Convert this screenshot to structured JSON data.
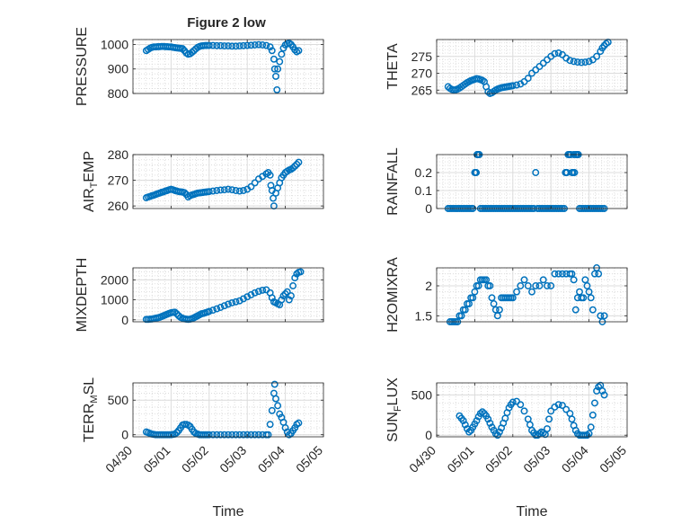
{
  "figure": {
    "title": "Figure 2 low",
    "x_tick_labels": [
      "04/30",
      "05/01",
      "05/02",
      "05/03",
      "05/04",
      "05/05"
    ],
    "x_label": "Time",
    "marker_color": "#0072BD"
  },
  "chart_data": [
    {
      "type": "scatter",
      "name": "PRESSURE",
      "ylabel": "PRESSURE",
      "xlim": [
        0,
        5
      ],
      "ylim": [
        800,
        1020
      ],
      "yticks": [
        800,
        900,
        1000
      ],
      "ytick_labels": [
        "800",
        "900",
        "1000"
      ],
      "title": "Figure 2 low",
      "x": [
        0.35,
        0.4,
        0.45,
        0.5,
        0.55,
        0.6,
        0.65,
        0.7,
        0.75,
        0.8,
        0.85,
        0.9,
        0.95,
        1.0,
        1.05,
        1.1,
        1.15,
        1.2,
        1.25,
        1.3,
        1.35,
        1.4,
        1.45,
        1.5,
        1.55,
        1.6,
        1.65,
        1.7,
        1.75,
        1.8,
        1.85,
        1.9,
        1.95,
        2.0,
        2.1,
        2.2,
        2.3,
        2.4,
        2.5,
        2.6,
        2.7,
        2.8,
        2.9,
        3.0,
        3.1,
        3.2,
        3.3,
        3.4,
        3.5,
        3.6,
        3.65,
        3.7,
        3.72,
        3.75,
        3.78,
        3.8,
        3.85,
        3.9,
        3.95,
        4.0,
        4.05,
        4.1,
        4.15,
        4.2,
        4.25,
        4.3,
        4.35
      ],
      "y": [
        975,
        980,
        985,
        988,
        990,
        990,
        991,
        991,
        992,
        992,
        991,
        991,
        990,
        990,
        988,
        987,
        986,
        985,
        984,
        983,
        975,
        965,
        960,
        962,
        968,
        975,
        982,
        988,
        992,
        994,
        995,
        996,
        996,
        996,
        996,
        995,
        995,
        994,
        994,
        993,
        993,
        994,
        995,
        996,
        997,
        998,
        999,
        998,
        996,
        990,
        975,
        940,
        900,
        870,
        815,
        900,
        930,
        960,
        985,
        998,
        1003,
        1005,
        1000,
        990,
        978,
        970,
        975
      ]
    },
    {
      "type": "scatter",
      "name": "THETA",
      "ylabel": "THETA",
      "xlim": [
        0,
        5
      ],
      "ylim": [
        264,
        280
      ],
      "yticks": [
        265,
        270,
        275
      ],
      "ytick_labels": [
        "265",
        "270",
        "275"
      ],
      "x": [
        0.3,
        0.35,
        0.4,
        0.45,
        0.5,
        0.55,
        0.6,
        0.65,
        0.7,
        0.75,
        0.8,
        0.85,
        0.9,
        0.95,
        1.0,
        1.05,
        1.1,
        1.15,
        1.2,
        1.25,
        1.3,
        1.35,
        1.4,
        1.45,
        1.5,
        1.55,
        1.6,
        1.65,
        1.7,
        1.75,
        1.8,
        1.85,
        1.9,
        1.95,
        2.0,
        2.1,
        2.2,
        2.3,
        2.4,
        2.5,
        2.6,
        2.7,
        2.8,
        2.9,
        3.0,
        3.1,
        3.2,
        3.3,
        3.4,
        3.5,
        3.6,
        3.7,
        3.8,
        3.9,
        4.0,
        4.1,
        4.2,
        4.3,
        4.35,
        4.4,
        4.45,
        4.5
      ],
      "y": [
        266,
        265.5,
        265.2,
        265,
        265.1,
        265.3,
        265.6,
        266,
        266.4,
        266.8,
        267.2,
        267.5,
        267.8,
        268,
        268.2,
        268.4,
        268.3,
        268.1,
        267.9,
        267.5,
        266,
        264.5,
        264,
        264.2,
        264.6,
        265,
        265.3,
        265.5,
        265.7,
        265.8,
        265.9,
        266,
        266.1,
        266.2,
        266.3,
        266.5,
        266.8,
        267.5,
        268.5,
        270,
        271,
        272,
        273,
        274,
        275,
        275.8,
        276,
        275.5,
        274.5,
        273.8,
        273.5,
        273.3,
        273.2,
        273.3,
        273.5,
        274,
        275,
        276.5,
        277.5,
        278.2,
        278.8,
        279.2
      ]
    },
    {
      "type": "scatter",
      "name": "AIR_TEMP",
      "ylabel": "AIR",
      "ylabel_sub": "T",
      "ylabel_tail": "EMP",
      "xlim": [
        0,
        5
      ],
      "ylim": [
        259,
        280
      ],
      "yticks": [
        260,
        270,
        280
      ],
      "ytick_labels": [
        "260",
        "270",
        "280"
      ],
      "x": [
        0.35,
        0.4,
        0.45,
        0.5,
        0.55,
        0.6,
        0.65,
        0.7,
        0.75,
        0.8,
        0.85,
        0.9,
        0.95,
        1.0,
        1.05,
        1.1,
        1.15,
        1.2,
        1.25,
        1.3,
        1.35,
        1.4,
        1.45,
        1.5,
        1.55,
        1.6,
        1.65,
        1.7,
        1.75,
        1.8,
        1.85,
        1.9,
        1.95,
        2.0,
        2.1,
        2.2,
        2.3,
        2.4,
        2.5,
        2.6,
        2.7,
        2.8,
        2.9,
        3.0,
        3.1,
        3.2,
        3.3,
        3.4,
        3.5,
        3.55,
        3.6,
        3.62,
        3.65,
        3.68,
        3.7,
        3.75,
        3.8,
        3.85,
        3.9,
        3.95,
        4.0,
        4.05,
        4.1,
        4.15,
        4.2,
        4.25,
        4.3,
        4.35
      ],
      "y": [
        263.2,
        263.5,
        263.7,
        264,
        264.2,
        264.5,
        264.8,
        265,
        265.3,
        265.5,
        265.8,
        266,
        266.3,
        266.5,
        266.3,
        266,
        265.8,
        265.6,
        265.5,
        265.4,
        265.2,
        264.5,
        263.5,
        264,
        264.3,
        264.5,
        264.8,
        265,
        265.1,
        265.2,
        265.3,
        265.4,
        265.5,
        265.6,
        265.8,
        266,
        266.2,
        266.3,
        266.5,
        266.3,
        266,
        265.8,
        266,
        266.5,
        267.5,
        269,
        270.5,
        271.5,
        272.5,
        273,
        272,
        268,
        266,
        263,
        260,
        265,
        267,
        269,
        271,
        272,
        273,
        273.5,
        274,
        274.3,
        274.8,
        275.5,
        276.2,
        277
      ]
    },
    {
      "type": "scatter",
      "name": "RAINFALL",
      "ylabel": "RAINFALL",
      "xlim": [
        0,
        5
      ],
      "ylim": [
        0,
        0.3
      ],
      "yticks": [
        0,
        0.1,
        0.2
      ],
      "ytick_labels": [
        "0",
        "0.1",
        "0.2"
      ],
      "x": [
        0.3,
        0.35,
        0.4,
        0.45,
        0.5,
        0.55,
        0.6,
        0.65,
        0.7,
        0.75,
        0.8,
        0.85,
        0.9,
        0.95,
        1.0,
        1.02,
        1.04,
        1.06,
        1.08,
        1.1,
        1.12,
        1.15,
        1.2,
        1.25,
        1.3,
        1.35,
        1.4,
        1.45,
        1.5,
        1.55,
        1.6,
        1.65,
        1.7,
        1.75,
        1.8,
        1.85,
        1.9,
        1.95,
        2.0,
        2.05,
        2.1,
        2.15,
        2.2,
        2.25,
        2.3,
        2.35,
        2.4,
        2.45,
        2.5,
        2.55,
        2.6,
        2.65,
        2.7,
        2.75,
        2.8,
        2.85,
        2.9,
        2.95,
        3.0,
        3.05,
        3.1,
        3.15,
        3.2,
        3.25,
        3.3,
        3.35,
        3.38,
        3.4,
        3.42,
        3.45,
        3.48,
        3.5,
        3.52,
        3.55,
        3.58,
        3.6,
        3.62,
        3.65,
        3.68,
        3.7,
        3.72,
        3.75,
        3.8,
        3.85,
        3.9,
        3.95,
        4.0,
        4.05,
        4.1,
        4.15,
        4.2,
        4.25,
        4.3,
        4.35,
        4.4
      ],
      "y": [
        0,
        0,
        0,
        0,
        0,
        0,
        0,
        0,
        0,
        0,
        0,
        0,
        0,
        0,
        0.2,
        0.2,
        0.2,
        0.3,
        0.3,
        0.3,
        0.3,
        0,
        0,
        0,
        0,
        0,
        0,
        0,
        0,
        0,
        0,
        0,
        0,
        0,
        0,
        0,
        0,
        0,
        0,
        0,
        0,
        0,
        0,
        0,
        0,
        0,
        0,
        0,
        0,
        0,
        0.2,
        0,
        0,
        0,
        0,
        0,
        0,
        0,
        0,
        0,
        0,
        0,
        0,
        0,
        0,
        0,
        0.2,
        0.2,
        0.2,
        0.3,
        0.3,
        0.3,
        0.3,
        0.2,
        0.2,
        0.3,
        0.2,
        0.3,
        0.3,
        0.3,
        0.3,
        0,
        0,
        0,
        0,
        0,
        0,
        0,
        0,
        0,
        0,
        0,
        0,
        0,
        0
      ]
    },
    {
      "type": "scatter",
      "name": "MIXDEPTH",
      "ylabel": "MIXDEPTH",
      "xlim": [
        0,
        5
      ],
      "ylim": [
        -100,
        2600
      ],
      "yticks": [
        0,
        1000,
        2000
      ],
      "ytick_labels": [
        "0",
        "1000",
        "2000"
      ],
      "x": [
        0.35,
        0.4,
        0.45,
        0.5,
        0.55,
        0.6,
        0.65,
        0.7,
        0.75,
        0.8,
        0.85,
        0.9,
        0.95,
        1.0,
        1.05,
        1.1,
        1.15,
        1.2,
        1.25,
        1.3,
        1.35,
        1.4,
        1.45,
        1.5,
        1.55,
        1.6,
        1.65,
        1.7,
        1.75,
        1.8,
        1.85,
        1.9,
        1.95,
        2.0,
        2.1,
        2.2,
        2.3,
        2.4,
        2.5,
        2.6,
        2.7,
        2.8,
        2.9,
        3.0,
        3.1,
        3.2,
        3.3,
        3.4,
        3.5,
        3.6,
        3.65,
        3.7,
        3.75,
        3.8,
        3.85,
        3.9,
        3.95,
        4.0,
        4.05,
        4.1,
        4.15,
        4.2,
        4.25,
        4.3,
        4.35,
        4.4
      ],
      "y": [
        20,
        20,
        30,
        40,
        60,
        80,
        100,
        120,
        160,
        200,
        240,
        280,
        320,
        350,
        370,
        380,
        300,
        200,
        120,
        80,
        50,
        30,
        20,
        30,
        60,
        100,
        150,
        200,
        250,
        300,
        320,
        350,
        380,
        420,
        480,
        550,
        620,
        700,
        780,
        850,
        900,
        950,
        1050,
        1150,
        1250,
        1350,
        1420,
        1480,
        1500,
        1350,
        1100,
        900,
        850,
        800,
        750,
        1000,
        1200,
        1300,
        1400,
        1000,
        1200,
        1700,
        2100,
        2300,
        2380,
        2400
      ]
    },
    {
      "type": "scatter",
      "name": "H2OMIXRA",
      "ylabel": "H2OMIXRA",
      "xlim": [
        0,
        5
      ],
      "ylim": [
        1.4,
        2.3
      ],
      "yticks": [
        1.5,
        2.0
      ],
      "ytick_labels": [
        "1.5",
        "2"
      ],
      "x": [
        0.35,
        0.4,
        0.45,
        0.5,
        0.55,
        0.6,
        0.65,
        0.7,
        0.75,
        0.8,
        0.85,
        0.9,
        0.95,
        1.0,
        1.05,
        1.1,
        1.15,
        1.2,
        1.25,
        1.3,
        1.35,
        1.4,
        1.45,
        1.5,
        1.55,
        1.6,
        1.65,
        1.7,
        1.75,
        1.8,
        1.85,
        1.9,
        1.95,
        2.0,
        2.1,
        2.2,
        2.3,
        2.4,
        2.5,
        2.6,
        2.7,
        2.8,
        2.9,
        3.0,
        3.1,
        3.2,
        3.3,
        3.4,
        3.5,
        3.55,
        3.6,
        3.65,
        3.7,
        3.75,
        3.8,
        3.85,
        3.9,
        3.95,
        4.0,
        4.05,
        4.1,
        4.15,
        4.2,
        4.25,
        4.3,
        4.35,
        4.4
      ],
      "y": [
        1.4,
        1.4,
        1.4,
        1.4,
        1.4,
        1.5,
        1.5,
        1.6,
        1.6,
        1.7,
        1.7,
        1.8,
        1.8,
        1.9,
        2.0,
        2.0,
        2.1,
        2.1,
        2.1,
        2.1,
        2.0,
        2.0,
        1.8,
        1.7,
        1.6,
        1.5,
        1.6,
        1.8,
        1.8,
        1.8,
        1.8,
        1.8,
        1.8,
        1.8,
        1.9,
        2.0,
        2.1,
        2.0,
        1.9,
        2.0,
        2.0,
        2.1,
        2.0,
        2.0,
        2.2,
        2.2,
        2.2,
        2.2,
        2.2,
        2.2,
        2.1,
        1.6,
        1.8,
        1.9,
        1.8,
        1.8,
        2.1,
        2.0,
        1.9,
        1.8,
        1.6,
        2.2,
        2.3,
        2.2,
        1.5,
        1.4,
        1.5
      ]
    },
    {
      "type": "scatter",
      "name": "TERR_MSL",
      "ylabel": "TERR",
      "ylabel_sub": "M",
      "ylabel_tail": "SL",
      "xlim": [
        0,
        5
      ],
      "ylim": [
        -30,
        750
      ],
      "yticks": [
        0,
        500
      ],
      "ytick_labels": [
        "0",
        "500"
      ],
      "x": [
        0.35,
        0.4,
        0.45,
        0.5,
        0.55,
        0.6,
        0.65,
        0.7,
        0.75,
        0.8,
        0.85,
        0.9,
        0.95,
        1.0,
        1.05,
        1.1,
        1.15,
        1.2,
        1.25,
        1.3,
        1.35,
        1.4,
        1.45,
        1.5,
        1.55,
        1.6,
        1.65,
        1.7,
        1.75,
        1.8,
        1.85,
        1.9,
        1.95,
        2.0,
        2.1,
        2.2,
        2.3,
        2.4,
        2.5,
        2.6,
        2.7,
        2.8,
        2.9,
        3.0,
        3.1,
        3.2,
        3.3,
        3.4,
        3.5,
        3.55,
        3.6,
        3.65,
        3.7,
        3.72,
        3.75,
        3.8,
        3.85,
        3.9,
        3.95,
        4.0,
        4.05,
        4.1,
        4.15,
        4.2,
        4.25,
        4.3,
        4.35
      ],
      "y": [
        40,
        30,
        20,
        10,
        5,
        0,
        0,
        0,
        0,
        0,
        0,
        0,
        0,
        0,
        5,
        10,
        30,
        60,
        100,
        140,
        150,
        150,
        140,
        120,
        80,
        40,
        20,
        10,
        0,
        0,
        0,
        0,
        0,
        0,
        0,
        0,
        0,
        0,
        0,
        0,
        0,
        0,
        0,
        0,
        0,
        0,
        0,
        0,
        0,
        0,
        150,
        350,
        600,
        730,
        520,
        420,
        300,
        250,
        180,
        100,
        40,
        0,
        20,
        60,
        100,
        150,
        170
      ]
    },
    {
      "type": "scatter",
      "name": "SUN_FLUX",
      "ylabel": "SUN",
      "ylabel_sub": "F",
      "ylabel_tail": "LUX",
      "xlim": [
        0,
        5
      ],
      "ylim": [
        -20,
        650
      ],
      "yticks": [
        0,
        500
      ],
      "ytick_labels": [
        "0",
        "500"
      ],
      "x": [
        0.6,
        0.65,
        0.7,
        0.75,
        0.8,
        0.85,
        0.9,
        0.95,
        1.0,
        1.05,
        1.1,
        1.15,
        1.2,
        1.25,
        1.3,
        1.35,
        1.4,
        1.45,
        1.5,
        1.55,
        1.6,
        1.65,
        1.7,
        1.75,
        1.8,
        1.85,
        1.9,
        1.95,
        2.0,
        2.1,
        2.2,
        2.3,
        2.4,
        2.45,
        2.5,
        2.55,
        2.6,
        2.65,
        2.7,
        2.75,
        2.8,
        2.85,
        2.9,
        2.95,
        3.0,
        3.1,
        3.2,
        3.3,
        3.4,
        3.5,
        3.55,
        3.6,
        3.65,
        3.7,
        3.75,
        3.8,
        3.85,
        3.9,
        3.95,
        4.0,
        4.05,
        4.1,
        4.15,
        4.2,
        4.25,
        4.3,
        4.35,
        4.4
      ],
      "y": [
        240,
        210,
        180,
        130,
        80,
        40,
        60,
        100,
        140,
        180,
        230,
        270,
        290,
        270,
        240,
        200,
        150,
        100,
        60,
        20,
        0,
        40,
        90,
        150,
        210,
        280,
        340,
        380,
        410,
        420,
        380,
        300,
        200,
        130,
        60,
        30,
        0,
        0,
        20,
        40,
        30,
        10,
        80,
        200,
        300,
        350,
        380,
        370,
        320,
        270,
        200,
        120,
        60,
        20,
        0,
        0,
        0,
        0,
        0,
        20,
        100,
        250,
        400,
        550,
        600,
        620,
        550,
        500
      ]
    }
  ]
}
